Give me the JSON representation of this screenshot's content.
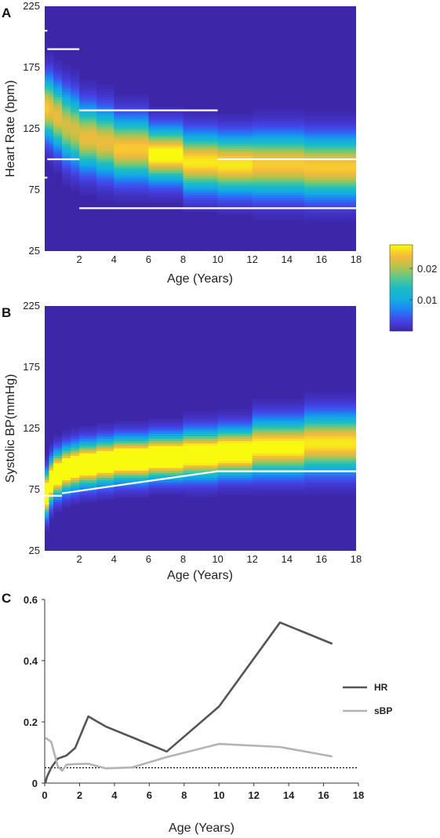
{
  "chart_data": [
    {
      "panel": "A",
      "type": "heatmap",
      "xlabel": "Age (Years)",
      "ylabel": "Heart Rate (bpm)",
      "xlim": [
        0,
        18
      ],
      "ylim": [
        25,
        225
      ],
      "x_ticks": [
        2,
        4,
        6,
        8,
        10,
        12,
        14,
        16,
        18
      ],
      "y_ticks": [
        25,
        75,
        125,
        175,
        225
      ],
      "density_bins": [
        {
          "x0": 0.0,
          "x1": 0.25,
          "mean": 142,
          "sd": 16
        },
        {
          "x0": 0.25,
          "x1": 0.5,
          "mean": 141,
          "sd": 17
        },
        {
          "x0": 0.5,
          "x1": 1.0,
          "mean": 135,
          "sd": 17
        },
        {
          "x0": 1.0,
          "x1": 1.5,
          "mean": 128,
          "sd": 18
        },
        {
          "x0": 1.5,
          "x1": 2.0,
          "mean": 124,
          "sd": 18
        },
        {
          "x0": 2.0,
          "x1": 3.0,
          "mean": 118,
          "sd": 17
        },
        {
          "x0": 3.0,
          "x1": 4.0,
          "mean": 114,
          "sd": 17
        },
        {
          "x0": 4.0,
          "x1": 6.0,
          "mean": 109,
          "sd": 16
        },
        {
          "x0": 6.0,
          "x1": 8.0,
          "mean": 104,
          "sd": 14
        },
        {
          "x0": 8.0,
          "x1": 10.0,
          "mean": 98,
          "sd": 15
        },
        {
          "x0": 10.0,
          "x1": 12.0,
          "mean": 96,
          "sd": 15
        },
        {
          "x0": 12.0,
          "x1": 15.0,
          "mean": 96,
          "sd": 16
        },
        {
          "x0": 15.0,
          "x1": 18.0,
          "mean": 94,
          "sd": 16
        }
      ],
      "reference_lines": [
        {
          "x0": 0.0,
          "x1": 0.15,
          "y": 205
        },
        {
          "x0": 0.0,
          "x1": 0.15,
          "y": 85
        },
        {
          "x0": 0.15,
          "x1": 2.0,
          "y": 190
        },
        {
          "x0": 0.15,
          "x1": 2.0,
          "y": 100
        },
        {
          "x0": 2.0,
          "x1": 10.0,
          "y": 140
        },
        {
          "x0": 2.0,
          "x1": 18.0,
          "y": 60
        },
        {
          "x0": 10.0,
          "x1": 18.0,
          "y": 100
        }
      ]
    },
    {
      "panel": "B",
      "type": "heatmap",
      "xlabel": "Age (Years)",
      "ylabel": "Systolic BP(mmHg)",
      "xlim": [
        0,
        18
      ],
      "ylim": [
        25,
        225
      ],
      "x_ticks": [
        2,
        4,
        6,
        8,
        10,
        12,
        14,
        16,
        18
      ],
      "y_ticks": [
        25,
        75,
        125,
        175,
        225
      ],
      "density_bins": [
        {
          "x0": 0.0,
          "x1": 0.25,
          "mean": 72,
          "sd": 11
        },
        {
          "x0": 0.25,
          "x1": 0.5,
          "mean": 82,
          "sd": 11
        },
        {
          "x0": 0.5,
          "x1": 1.0,
          "mean": 88,
          "sd": 11
        },
        {
          "x0": 1.0,
          "x1": 1.5,
          "mean": 92,
          "sd": 11
        },
        {
          "x0": 1.5,
          "x1": 2.0,
          "mean": 94,
          "sd": 11
        },
        {
          "x0": 2.0,
          "x1": 3.0,
          "mean": 96,
          "sd": 11
        },
        {
          "x0": 3.0,
          "x1": 4.0,
          "mean": 98,
          "sd": 11
        },
        {
          "x0": 4.0,
          "x1": 6.0,
          "mean": 100,
          "sd": 11
        },
        {
          "x0": 6.0,
          "x1": 8.0,
          "mean": 102,
          "sd": 11
        },
        {
          "x0": 8.0,
          "x1": 10.0,
          "mean": 104,
          "sd": 12
        },
        {
          "x0": 10.0,
          "x1": 12.0,
          "mean": 106,
          "sd": 12
        },
        {
          "x0": 12.0,
          "x1": 15.0,
          "mean": 110,
          "sd": 14
        },
        {
          "x0": 15.0,
          "x1": 18.0,
          "mean": 113,
          "sd": 15
        }
      ],
      "reference_lines": [
        {
          "x0": 0.0,
          "x1": 1.0,
          "y": 70
        },
        {
          "x0": 1.0,
          "x1": 10.0,
          "y0": 72,
          "y1": 90
        },
        {
          "x0": 10.0,
          "x1": 18.0,
          "y": 90
        }
      ]
    },
    {
      "panel": "C",
      "type": "line",
      "xlabel": "Age (Years)",
      "ylabel": "",
      "xlim": [
        0,
        18
      ],
      "ylim": [
        0,
        0.6
      ],
      "x_ticks": [
        0,
        2,
        4,
        6,
        8,
        10,
        12,
        14,
        16,
        18
      ],
      "y_ticks": [
        0,
        0.2,
        0.4,
        0.6
      ],
      "threshold": 0.05,
      "series": [
        {
          "name": "HR",
          "color": "#555555",
          "x": [
            0.04,
            0.125,
            0.375,
            0.75,
            1.25,
            1.75,
            2.5,
            3.5,
            5.0,
            7.0,
            10.0,
            13.5,
            16.5
          ],
          "y": [
            0.0,
            0.02,
            0.05,
            0.08,
            0.09,
            0.115,
            0.218,
            0.185,
            0.15,
            0.103,
            0.25,
            0.525,
            0.455
          ]
        },
        {
          "name": "sBP",
          "color": "#b3b3b3",
          "x": [
            0.04,
            0.375,
            0.75,
            1.0,
            1.25,
            1.75,
            2.5,
            3.5,
            5.0,
            7.0,
            10.0,
            13.5,
            16.5
          ],
          "y": [
            0.148,
            0.135,
            0.055,
            0.04,
            0.06,
            0.062,
            0.063,
            0.048,
            0.051,
            0.085,
            0.128,
            0.118,
            0.087
          ]
        }
      ]
    }
  ],
  "colorbar": {
    "ticks": [
      0.01,
      0.02
    ],
    "tick_labels": [
      "0.01",
      "0.02"
    ],
    "max": 0.0275,
    "colormap": "parula"
  },
  "panel_labels": [
    "A",
    "B",
    "C"
  ],
  "colors": {
    "background_dark": "#3e26a8",
    "reference_line": "#ffffff",
    "threshold_line": "#000000"
  }
}
